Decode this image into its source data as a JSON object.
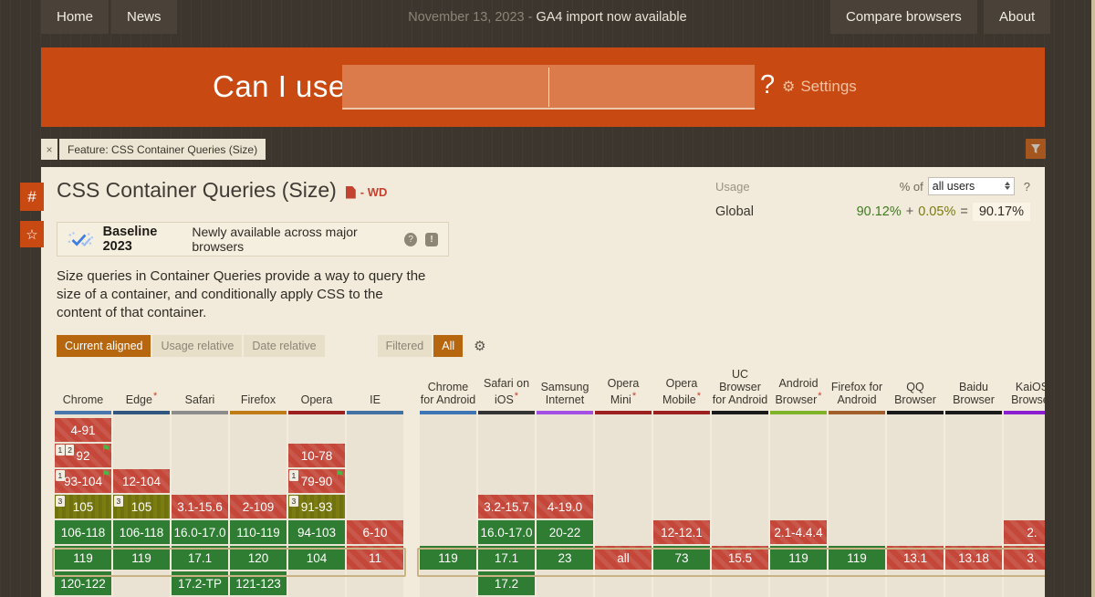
{
  "topnav": {
    "home": "Home",
    "news": "News",
    "announcement_date": "November 13, 2023 -",
    "announcement": "GA4 import now available",
    "compare_browsers": "Compare browsers",
    "about": "About"
  },
  "hero": {
    "brand": "Can I use",
    "question_mark": "?",
    "settings_label": "Settings",
    "search_value": "",
    "accent_color": "#c84a12"
  },
  "feature_tag": {
    "close": "×",
    "label": "Feature: CSS Container Queries (Size)"
  },
  "page": {
    "title": "CSS Container Queries (Size)",
    "spec_status": "- WD"
  },
  "usage": {
    "label": "Usage",
    "percent_of": "% of",
    "select_value": "all users",
    "help": "?",
    "region": "Global",
    "value_supported": "90.12%",
    "plus": "+",
    "value_partial": "0.05%",
    "equals": "=",
    "total": "90.17%"
  },
  "baseline": {
    "title": "Baseline 2023",
    "subtitle": "Newly available across major browsers",
    "help_icon": "?",
    "feedback_icon": "!"
  },
  "description": "Size queries in Container Queries provide a way to query the size of a container, and conditionally apply CSS to the content of that container.",
  "filters": {
    "current_aligned": "Current aligned",
    "usage_relative": "Usage relative",
    "date_relative": "Date relative",
    "filtered": "Filtered",
    "all": "All"
  },
  "icons": {
    "hash": "#",
    "star": "☆",
    "gear": "⚙",
    "flag": "⚑",
    "asterisk": "*",
    "close": "×"
  },
  "legend_colors": {
    "supported": "#2f7d33",
    "not_supported": "#c4473a",
    "partial": "#7b7d10",
    "current_row_outline": "#c9b283"
  },
  "support_table": {
    "current_row_index": 5,
    "row_count": 7,
    "groups": [
      {
        "name": "desktop",
        "columns": [
          {
            "label": "Chrome",
            "asterisk": false,
            "color": "#4876ad",
            "cells": [
              {
                "row": 0,
                "text": "4-91",
                "type": "red"
              },
              {
                "row": 1,
                "text": "92",
                "type": "red",
                "badges": [
                  "1",
                  "2"
                ],
                "flag": true
              },
              {
                "row": 2,
                "text": "93-104",
                "type": "red",
                "badges": [
                  "1"
                ],
                "flag": true
              },
              {
                "row": 3,
                "text": "105",
                "type": "olive",
                "badges": [
                  "3"
                ]
              },
              {
                "row": 4,
                "text": "106-118",
                "type": "green"
              },
              {
                "row": 5,
                "text": "119",
                "type": "green"
              },
              {
                "row": 6,
                "text": "120-122",
                "type": "green"
              }
            ]
          },
          {
            "label": "Edge",
            "asterisk": true,
            "color": "#30557e",
            "cells": [
              {
                "row": 2,
                "text": "12-104",
                "type": "red"
              },
              {
                "row": 3,
                "text": "105",
                "type": "olive",
                "badges": [
                  "3"
                ]
              },
              {
                "row": 4,
                "text": "106-118",
                "type": "green"
              },
              {
                "row": 5,
                "text": "119",
                "type": "green"
              }
            ]
          },
          {
            "label": "Safari",
            "asterisk": false,
            "color": "#8c8c8c",
            "cells": [
              {
                "row": 3,
                "text": "3.1-15.6",
                "type": "red"
              },
              {
                "row": 4,
                "text": "16.0-17.0",
                "type": "green"
              },
              {
                "row": 5,
                "text": "17.1",
                "type": "green"
              },
              {
                "row": 6,
                "text": "17.2-TP",
                "type": "green"
              }
            ]
          },
          {
            "label": "Firefox",
            "asterisk": false,
            "color": "#bf7c16",
            "cells": [
              {
                "row": 3,
                "text": "2-109",
                "type": "red"
              },
              {
                "row": 4,
                "text": "110-119",
                "type": "green"
              },
              {
                "row": 5,
                "text": "120",
                "type": "green"
              },
              {
                "row": 6,
                "text": "121-123",
                "type": "green"
              }
            ]
          },
          {
            "label": "Opera",
            "asterisk": false,
            "color": "#9c2020",
            "cells": [
              {
                "row": 1,
                "text": "10-78",
                "type": "red"
              },
              {
                "row": 2,
                "text": "79-90",
                "type": "red",
                "badges": [
                  "1"
                ],
                "flag": true
              },
              {
                "row": 3,
                "text": "91-93",
                "type": "olive",
                "badges": [
                  "3"
                ]
              },
              {
                "row": 4,
                "text": "94-103",
                "type": "green"
              },
              {
                "row": 5,
                "text": "104",
                "type": "green"
              }
            ]
          },
          {
            "label": "IE",
            "asterisk": false,
            "color": "#4272a3",
            "cells": [
              {
                "row": 4,
                "text": "6-10",
                "type": "red"
              },
              {
                "row": 5,
                "text": "11",
                "type": "red"
              }
            ]
          }
        ]
      },
      {
        "name": "mobile",
        "columns": [
          {
            "label": "Chrome for Android",
            "asterisk": false,
            "color": "#3e76b5",
            "cells": [
              {
                "row": 5,
                "text": "119",
                "type": "green"
              }
            ]
          },
          {
            "label": "Safari on iOS",
            "asterisk": true,
            "color": "#333333",
            "cells": [
              {
                "row": 3,
                "text": "3.2-15.7",
                "type": "red"
              },
              {
                "row": 4,
                "text": "16.0-17.0",
                "type": "green"
              },
              {
                "row": 5,
                "text": "17.1",
                "type": "green"
              },
              {
                "row": 6,
                "text": "17.2",
                "type": "green"
              }
            ]
          },
          {
            "label": "Samsung Internet",
            "asterisk": false,
            "color": "#a44fe3",
            "cells": [
              {
                "row": 3,
                "text": "4-19.0",
                "type": "red"
              },
              {
                "row": 4,
                "text": "20-22",
                "type": "green"
              },
              {
                "row": 5,
                "text": "23",
                "type": "green"
              }
            ]
          },
          {
            "label": "Opera Mini",
            "asterisk": true,
            "color": "#9c2020",
            "cells": [
              {
                "row": 5,
                "text": "all",
                "type": "red"
              }
            ]
          },
          {
            "label": "Opera Mobile",
            "asterisk": true,
            "color": "#9c2020",
            "cells": [
              {
                "row": 4,
                "text": "12-12.1",
                "type": "red"
              },
              {
                "row": 5,
                "text": "73",
                "type": "green"
              }
            ]
          },
          {
            "label": "UC Browser for Android",
            "asterisk": false,
            "color": "#1a1a1a",
            "cells": [
              {
                "row": 5,
                "text": "15.5",
                "type": "red"
              }
            ]
          },
          {
            "label": "Android Browser",
            "asterisk": true,
            "color": "#7fb32a",
            "cells": [
              {
                "row": 4,
                "text": "2.1-4.4.4",
                "type": "red"
              },
              {
                "row": 5,
                "text": "119",
                "type": "green"
              }
            ]
          },
          {
            "label": "Firefox for Android",
            "asterisk": false,
            "color": "#a35f2b",
            "cells": [
              {
                "row": 5,
                "text": "119",
                "type": "green"
              }
            ]
          },
          {
            "label": "QQ Browser",
            "asterisk": false,
            "color": "#1a1a1a",
            "cells": [
              {
                "row": 5,
                "text": "13.1",
                "type": "red"
              }
            ]
          },
          {
            "label": "Baidu Browser",
            "asterisk": false,
            "color": "#1a1a1a",
            "cells": [
              {
                "row": 5,
                "text": "13.18",
                "type": "red"
              }
            ]
          },
          {
            "label": "KaiOS Browser",
            "asterisk": false,
            "color": "#8b1fd0",
            "cells": [
              {
                "row": 4,
                "text": "2.",
                "type": "red"
              },
              {
                "row": 5,
                "text": "3.",
                "type": "red"
              }
            ]
          }
        ]
      }
    ]
  }
}
